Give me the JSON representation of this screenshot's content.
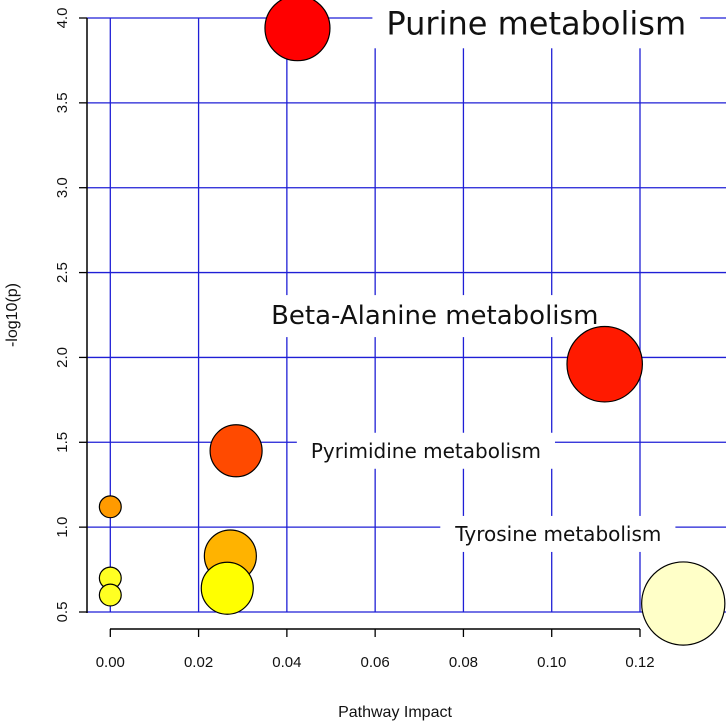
{
  "chart_data": {
    "type": "scatter",
    "subtype": "bubble",
    "xlabel": "Pathway Impact",
    "ylabel": "-log10(p)",
    "xlim": [
      -0.005,
      0.13
    ],
    "ylim": [
      0.5,
      4.0
    ],
    "x_ticks": [
      "0.00",
      "0.02",
      "0.04",
      "0.06",
      "0.08",
      "0.10",
      "0.12"
    ],
    "y_ticks": [
      "0.5",
      "1.0",
      "1.5",
      "2.0",
      "2.5",
      "3.0",
      "3.5",
      "4.0"
    ],
    "grid": true,
    "grid_color": "#1f1fd6",
    "points": [
      {
        "name": "Purine metabolism",
        "x": 0.0424,
        "y": 3.94,
        "size": 1.25,
        "color": "#ff0000"
      },
      {
        "name": "Beta-Alanine metabolism",
        "x": 0.112,
        "y": 1.96,
        "size": 1.45,
        "color": "#ff1a00"
      },
      {
        "name": "Pyrimidine metabolism",
        "x": 0.0285,
        "y": 1.45,
        "size": 1.0,
        "color": "#ff4a00"
      },
      {
        "name": "",
        "x": 0.0,
        "y": 1.12,
        "size": 0.42,
        "color": "#ff9a00"
      },
      {
        "name": "",
        "x": 0.0272,
        "y": 0.83,
        "size": 1.0,
        "color": "#ffb300"
      },
      {
        "name": "",
        "x": 0.0,
        "y": 0.7,
        "size": 0.42,
        "color": "#ffff22"
      },
      {
        "name": "",
        "x": 0.0,
        "y": 0.6,
        "size": 0.42,
        "color": "#ffff22"
      },
      {
        "name": "",
        "x": 0.0265,
        "y": 0.64,
        "size": 1.0,
        "color": "#ffff00"
      },
      {
        "name": "Tyrosine metabolism",
        "x": 0.1298,
        "y": 0.55,
        "size": 1.6,
        "color": "#ffffc8"
      }
    ],
    "annotations": [
      {
        "text": "Purine metabolism",
        "x": 0.0965,
        "y": 3.97,
        "size": "large"
      },
      {
        "text": "Beta-Alanine metabolism",
        "x": 0.0735,
        "y": 2.25,
        "size": "medium"
      },
      {
        "text": "Pyrimidine metabolism",
        "x": 0.0715,
        "y": 1.45,
        "size": "small"
      },
      {
        "text": "Tyrosine metabolism",
        "x": 0.1015,
        "y": 0.96,
        "size": "small"
      }
    ]
  }
}
